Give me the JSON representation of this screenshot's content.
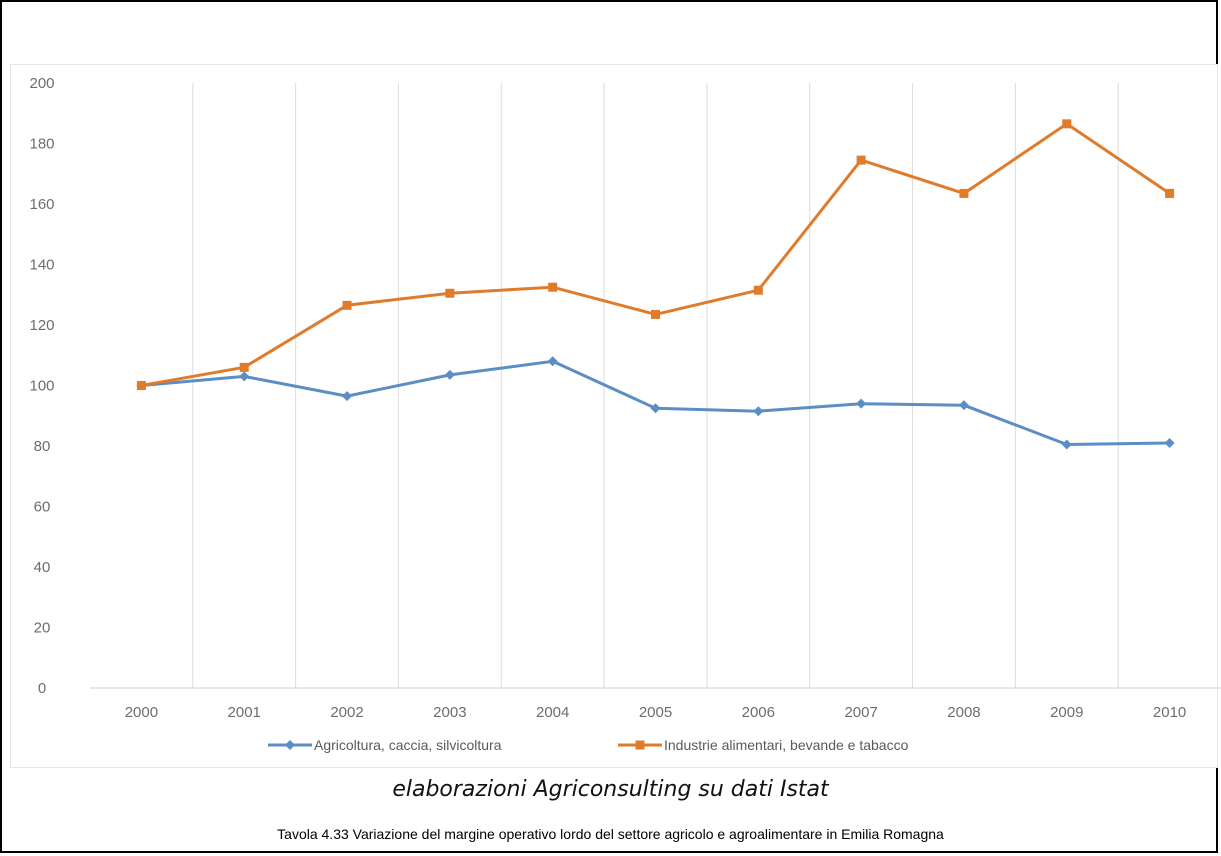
{
  "chart_data": {
    "type": "line",
    "categories": [
      "2000",
      "2001",
      "2002",
      "2003",
      "2004",
      "2005",
      "2006",
      "2007",
      "2008",
      "2009",
      "2010"
    ],
    "series": [
      {
        "name": "Agricoltura, caccia, silvicoltura",
        "color": "#5b8ec4",
        "values": [
          100,
          103,
          96.5,
          103.5,
          108,
          92.5,
          91.5,
          94,
          93.5,
          80.5,
          81
        ]
      },
      {
        "name": "Industrie alimentari, bevande e tabacco",
        "color": "#e07b2a",
        "values": [
          100,
          106,
          126.5,
          130.5,
          132.5,
          123.5,
          131.5,
          174.5,
          163.5,
          186.5,
          163.5
        ]
      }
    ],
    "ylim": [
      0,
      200
    ],
    "yticks": [
      0,
      20,
      40,
      60,
      80,
      100,
      120,
      140,
      160,
      180,
      200
    ],
    "grid": "vertical",
    "legend_position": "bottom"
  },
  "source": "elaborazioni Agriconsulting su dati Istat",
  "caption": "Tavola 4.33 Variazione del margine operativo lordo del settore agricolo e agroalimentare in Emilia Romagna"
}
